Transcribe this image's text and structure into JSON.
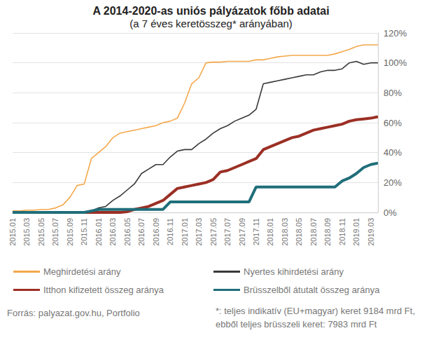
{
  "chart_data": {
    "type": "line",
    "title": "A 2014-2020-as uniós pályázatok főbb adatai",
    "subtitle": "(a 7 éves keretösszeg* arányában)",
    "categories": [
      "2015.01",
      null,
      "2015.03",
      null,
      "2015.05",
      null,
      "2015.07",
      null,
      "2015.09",
      null,
      "2015.11",
      null,
      "2016.01",
      null,
      "2016.03",
      null,
      "2016.05",
      null,
      "2016.07",
      null,
      "2016.09",
      null,
      "2016.11",
      null,
      "2017.01",
      null,
      "2017.03",
      null,
      "2017.05",
      null,
      "2017.07",
      null,
      "2017.09",
      null,
      "2017.11",
      null,
      "2018.01",
      null,
      "2018.03",
      null,
      "2018.05",
      null,
      "2018.07",
      null,
      "2018.09",
      null,
      "2018.11",
      null,
      "2019.01",
      null,
      "2019.03",
      null
    ],
    "series": [
      {
        "name": "Meghirdetési arány",
        "color": "#F4A84B",
        "values": [
          1,
          1,
          1.5,
          1.5,
          2,
          2,
          3,
          5,
          10,
          18,
          19,
          36,
          40,
          44,
          50,
          53,
          54,
          55,
          56,
          57,
          58,
          60,
          61,
          63,
          73,
          86,
          90,
          100,
          100.5,
          100.5,
          101,
          101,
          101,
          101,
          102,
          102,
          103,
          104,
          104.5,
          105,
          105,
          105,
          105,
          105,
          105,
          106,
          107.5,
          109,
          111,
          112,
          112,
          112
        ]
      },
      {
        "name": "Nyertes kihirdetési arány",
        "color": "#3A3A3A",
        "values": [
          0,
          0,
          0,
          0,
          0,
          0,
          0,
          0,
          0,
          0,
          0,
          1,
          3,
          4,
          8,
          11,
          15,
          19,
          26,
          29,
          32,
          32,
          37,
          41,
          42,
          42,
          46,
          49,
          53,
          56,
          58,
          61,
          63,
          65,
          69,
          86,
          87,
          88,
          89,
          90,
          91,
          92,
          92,
          94,
          95,
          95,
          96,
          100,
          101,
          99,
          100,
          100
        ]
      },
      {
        "name": "Itthon kifizetett összeg aránya",
        "color": "#9B2F24",
        "values": [
          0,
          0,
          0,
          0,
          0,
          0,
          0,
          0,
          0,
          0,
          0,
          0,
          0,
          0,
          0,
          0,
          0.5,
          2,
          3,
          4,
          6,
          8,
          12,
          16,
          17,
          18,
          19,
          20,
          22,
          27,
          28,
          30,
          32,
          34,
          36,
          42,
          44,
          46,
          48,
          50,
          51,
          53,
          55,
          56,
          57,
          58,
          59,
          61,
          62,
          62.5,
          63,
          64
        ]
      },
      {
        "name": "Brüsszelből átutalt összeg aránya",
        "color": "#1F6E7A",
        "values": [
          0,
          0,
          0,
          0,
          0,
          0,
          0,
          0,
          0,
          0,
          0,
          1,
          2,
          2,
          2,
          2,
          2,
          2,
          2,
          2,
          2,
          2,
          7,
          7,
          7,
          7,
          7,
          7,
          7,
          7,
          7,
          7,
          7,
          7,
          17,
          17,
          17,
          17,
          17,
          17,
          17,
          17,
          17,
          17,
          17,
          17,
          21,
          23,
          26,
          30,
          32,
          33
        ]
      }
    ],
    "ylim": [
      0,
      120
    ],
    "yticks": [
      {
        "value": 0,
        "label": "0%"
      },
      {
        "value": 20,
        "label": "20%"
      },
      {
        "value": 40,
        "label": "40%"
      },
      {
        "value": 60,
        "label": "60%"
      },
      {
        "value": 80,
        "label": "80%"
      },
      {
        "value": 100,
        "label": "100%"
      },
      {
        "value": 120,
        "label": "120%"
      }
    ],
    "grid": true,
    "legend": "bottom",
    "source": "Forrás: palyazat.gov.hu, Portfolio",
    "footnote": [
      "*: teljes indikatív (EU+magyar) keret 9184 mrd Ft,",
      "ebből teljes brüsszeli keret: 7983 mrd Ft"
    ]
  }
}
